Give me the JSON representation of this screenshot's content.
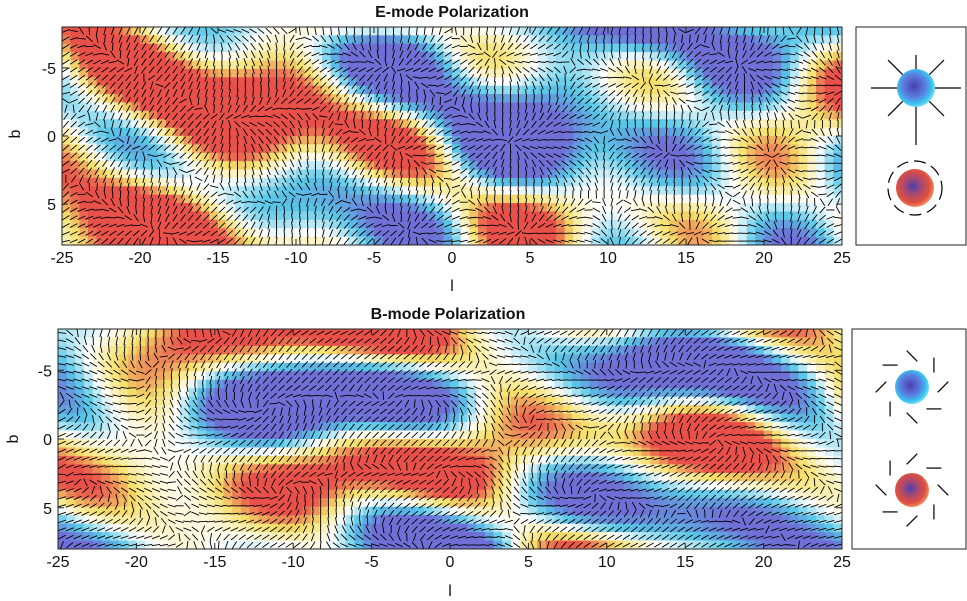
{
  "chart_data": [
    {
      "type": "heatmap",
      "title": "E-mode Polarization",
      "xlabel": "l",
      "ylabel": "b",
      "xlim": [
        -25,
        25
      ],
      "ylim": [
        -8,
        8
      ],
      "y_reversed": true,
      "x_ticks": [
        -25,
        -20,
        -15,
        -10,
        -5,
        0,
        5,
        10,
        15,
        20,
        25
      ],
      "y_ticks": [
        -5,
        0,
        5
      ],
      "overlay": "polarization line segments",
      "colormap": [
        "#6f6fd6",
        "#58c8e8",
        "#ffffff",
        "#f5e06a",
        "#e8504a"
      ],
      "seed": 11,
      "legend_key": "E-mode radial and tangential patterns",
      "grid": false
    },
    {
      "type": "heatmap",
      "title": "B-mode Polarization",
      "xlabel": "l",
      "ylabel": "b",
      "xlim": [
        -25,
        25
      ],
      "ylim": [
        -8,
        8
      ],
      "y_reversed": true,
      "x_ticks": [
        -25,
        -20,
        -15,
        -10,
        -5,
        0,
        5,
        10,
        15,
        20,
        25
      ],
      "y_ticks": [
        -5,
        0,
        5
      ],
      "overlay": "polarization line segments",
      "colormap": [
        "#6f6fd6",
        "#58c8e8",
        "#ffffff",
        "#f5e06a",
        "#e8504a"
      ],
      "seed": 29,
      "legend_key": "B-mode curl patterns",
      "grid": false
    }
  ]
}
